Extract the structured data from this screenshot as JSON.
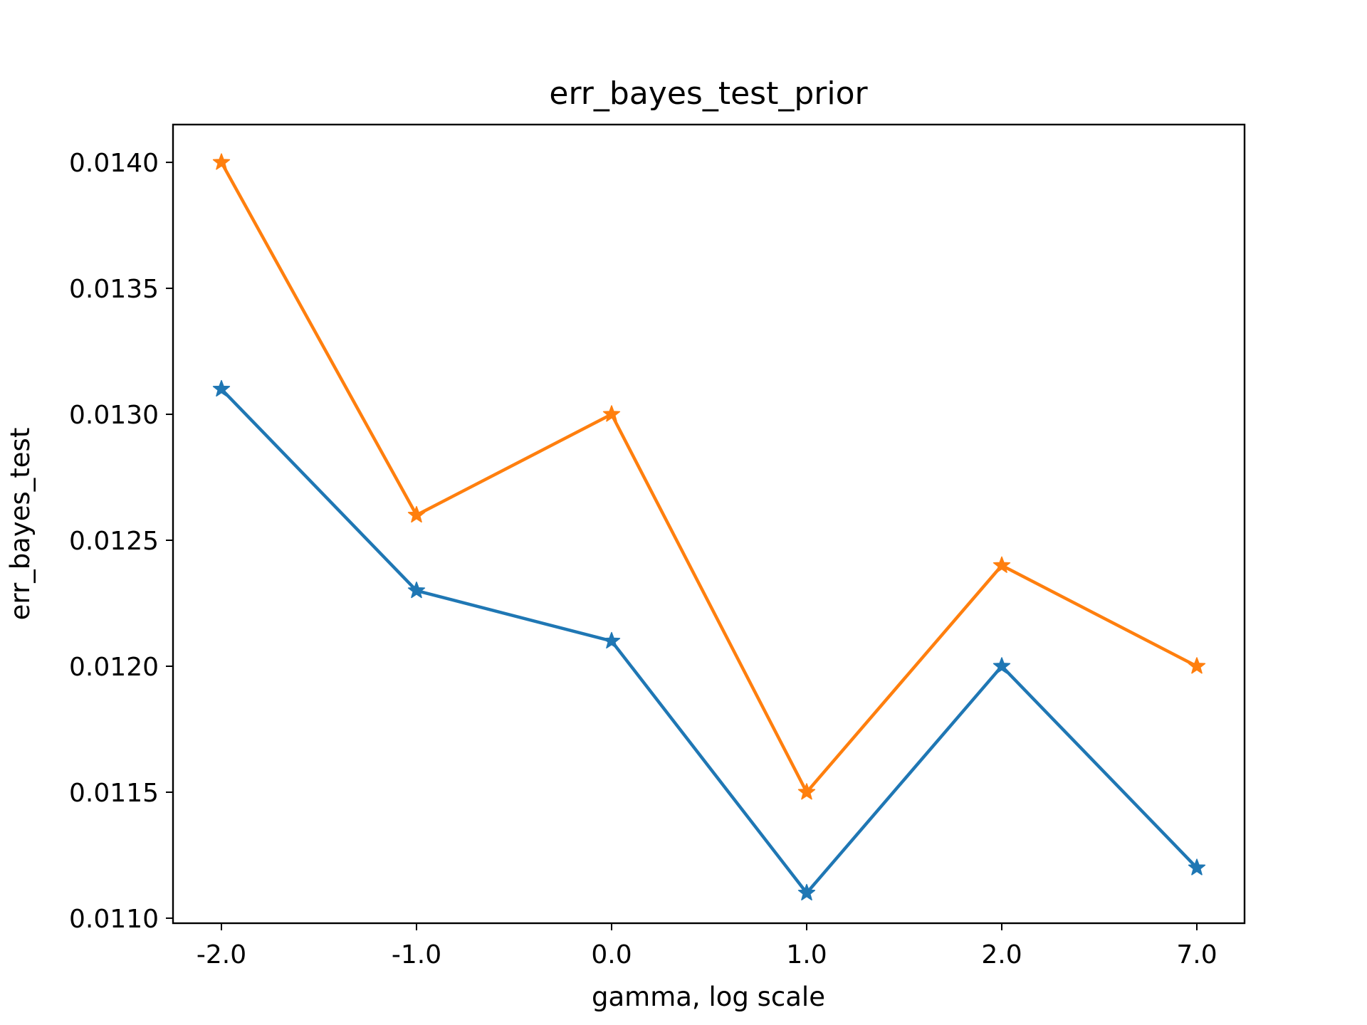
{
  "chart_data": {
    "type": "line",
    "title": "err_bayes_test_prior",
    "xlabel": "gamma, log scale",
    "ylabel": "err_bayes_test",
    "categories": [
      "-2.0",
      "-1.0",
      "0.0",
      "1.0",
      "2.0",
      "7.0"
    ],
    "ylim": [
      0.01098,
      0.01415
    ],
    "yticks": [
      "0.0110",
      "0.0115",
      "0.0120",
      "0.0125",
      "0.0130",
      "0.0135",
      "0.0140"
    ],
    "ytick_values": [
      0.011,
      0.0115,
      0.012,
      0.0125,
      0.013,
      0.0135,
      0.014
    ],
    "grid": false,
    "legend": "none",
    "marker": "star",
    "series": [
      {
        "color": "#1f77b4",
        "values": [
          0.0131,
          0.0123,
          0.0121,
          0.0111,
          0.012,
          0.0112
        ]
      },
      {
        "color": "#ff7f0e",
        "values": [
          0.014,
          0.0126,
          0.013,
          0.0115,
          0.0124,
          0.012
        ]
      }
    ]
  }
}
